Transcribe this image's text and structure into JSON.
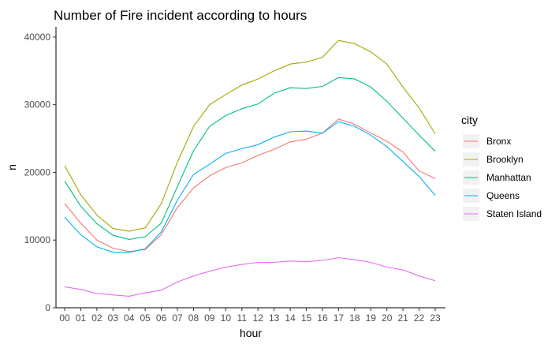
{
  "chart_data": {
    "type": "line",
    "title": "Number of Fire incident according to hours",
    "xlabel": "hour",
    "ylabel": "n",
    "categories": [
      "00",
      "01",
      "02",
      "03",
      "04",
      "05",
      "06",
      "07",
      "08",
      "09",
      "10",
      "11",
      "12",
      "13",
      "14",
      "15",
      "16",
      "17",
      "18",
      "19",
      "20",
      "21",
      "22",
      "23"
    ],
    "yticks": [
      0,
      10000,
      20000,
      30000,
      40000
    ],
    "ytick_labels": [
      "0",
      "10000",
      "20000",
      "30000",
      "40000"
    ],
    "ylim": [
      0,
      41500
    ],
    "grid": false,
    "legend": {
      "title": "city",
      "position": "right"
    },
    "series": [
      {
        "name": "Bronx",
        "color": "#F8766D",
        "values": [
          15400,
          12500,
          10000,
          8800,
          8300,
          8600,
          10800,
          14800,
          17700,
          19500,
          20700,
          21400,
          22500,
          23400,
          24500,
          24900,
          25800,
          27900,
          27100,
          25800,
          24600,
          23000,
          20200,
          19100
        ]
      },
      {
        "name": "Brooklyn",
        "color": "#A3A500",
        "values": [
          21000,
          16700,
          13700,
          11700,
          11300,
          11800,
          15400,
          21500,
          26800,
          30000,
          31500,
          32900,
          33800,
          35000,
          36000,
          36300,
          37000,
          39500,
          39000,
          37800,
          36000,
          32600,
          29500,
          25700
        ]
      },
      {
        "name": "Manhattan",
        "color": "#00BF7D",
        "values": [
          18700,
          15000,
          12400,
          10700,
          10100,
          10500,
          12500,
          17900,
          23200,
          26800,
          28400,
          29400,
          30100,
          31700,
          32500,
          32400,
          32700,
          34000,
          33800,
          32600,
          30500,
          28000,
          25500,
          23100
        ]
      },
      {
        "name": "Queens",
        "color": "#00B0F6",
        "values": [
          13400,
          10800,
          9000,
          8200,
          8200,
          8700,
          11200,
          15900,
          19700,
          21200,
          22800,
          23500,
          24100,
          25200,
          26000,
          26100,
          25800,
          27500,
          26800,
          25500,
          23800,
          21600,
          19400,
          16600
        ]
      },
      {
        "name": "Staten Island",
        "color": "#E76BF3",
        "values": [
          3100,
          2700,
          2100,
          1900,
          1700,
          2200,
          2600,
          3800,
          4700,
          5400,
          6000,
          6400,
          6700,
          6700,
          6900,
          6800,
          7000,
          7400,
          7100,
          6700,
          6000,
          5600,
          4700,
          4000
        ]
      }
    ]
  }
}
